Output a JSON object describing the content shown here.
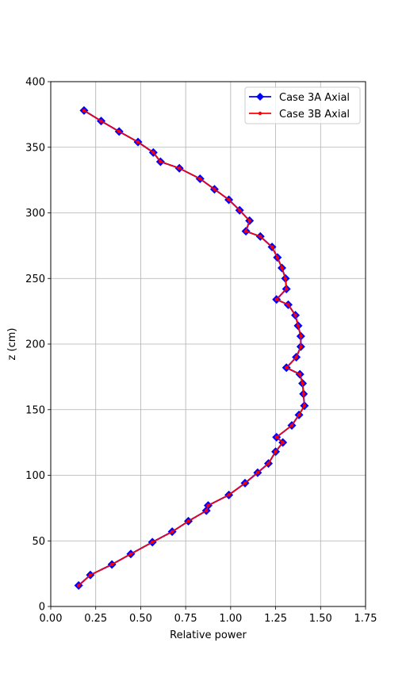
{
  "chart_data": {
    "type": "line",
    "title": "",
    "xlabel": "Relative power",
    "ylabel": "z (cm)",
    "xlim": [
      0,
      1.75
    ],
    "ylim": [
      0,
      400
    ],
    "xticks": [
      "0.00",
      "0.25",
      "0.50",
      "0.75",
      "1.00",
      "1.25",
      "1.50",
      "1.75"
    ],
    "yticks": [
      "0",
      "50",
      "100",
      "150",
      "200",
      "250",
      "300",
      "350",
      "400"
    ],
    "grid": true,
    "legend_position": "top-right",
    "series": [
      {
        "name": "Case 3A Axial",
        "color": "#0000ff",
        "marker": "diamond",
        "points": [
          [
            0.155,
            16
          ],
          [
            0.22,
            24
          ],
          [
            0.34,
            32
          ],
          [
            0.445,
            40
          ],
          [
            0.565,
            49
          ],
          [
            0.675,
            57
          ],
          [
            0.765,
            65
          ],
          [
            0.865,
            73
          ],
          [
            0.875,
            77
          ],
          [
            0.99,
            85
          ],
          [
            1.08,
            94
          ],
          [
            1.15,
            102
          ],
          [
            1.21,
            109
          ],
          [
            1.25,
            118
          ],
          [
            1.29,
            125
          ],
          [
            1.255,
            129
          ],
          [
            1.34,
            138
          ],
          [
            1.38,
            146
          ],
          [
            1.41,
            153
          ],
          [
            1.405,
            162
          ],
          [
            1.4,
            170
          ],
          [
            1.385,
            177
          ],
          [
            1.31,
            182
          ],
          [
            1.365,
            190
          ],
          [
            1.39,
            198
          ],
          [
            1.39,
            206
          ],
          [
            1.375,
            214
          ],
          [
            1.36,
            222
          ],
          [
            1.32,
            230
          ],
          [
            1.255,
            234
          ],
          [
            1.31,
            242
          ],
          [
            1.305,
            250
          ],
          [
            1.285,
            258
          ],
          [
            1.26,
            266
          ],
          [
            1.23,
            274
          ],
          [
            1.165,
            282
          ],
          [
            1.085,
            286
          ],
          [
            1.105,
            294
          ],
          [
            1.05,
            302
          ],
          [
            0.99,
            310
          ],
          [
            0.91,
            318
          ],
          [
            0.83,
            326
          ],
          [
            0.715,
            334
          ],
          [
            0.61,
            339
          ],
          [
            0.57,
            346
          ],
          [
            0.485,
            354
          ],
          [
            0.38,
            362
          ],
          [
            0.28,
            370
          ],
          [
            0.185,
            378
          ]
        ]
      },
      {
        "name": "Case 3B Axial",
        "color": "#ff0000",
        "marker": "dot",
        "points": [
          [
            0.155,
            16
          ],
          [
            0.22,
            24
          ],
          [
            0.34,
            32
          ],
          [
            0.445,
            40
          ],
          [
            0.565,
            49
          ],
          [
            0.675,
            57
          ],
          [
            0.765,
            65
          ],
          [
            0.865,
            73
          ],
          [
            0.875,
            77
          ],
          [
            0.99,
            85
          ],
          [
            1.08,
            94
          ],
          [
            1.15,
            102
          ],
          [
            1.21,
            109
          ],
          [
            1.25,
            118
          ],
          [
            1.29,
            125
          ],
          [
            1.255,
            129
          ],
          [
            1.34,
            138
          ],
          [
            1.38,
            146
          ],
          [
            1.41,
            153
          ],
          [
            1.405,
            162
          ],
          [
            1.4,
            170
          ],
          [
            1.385,
            177
          ],
          [
            1.31,
            182
          ],
          [
            1.365,
            190
          ],
          [
            1.39,
            198
          ],
          [
            1.39,
            206
          ],
          [
            1.375,
            214
          ],
          [
            1.36,
            222
          ],
          [
            1.32,
            230
          ],
          [
            1.255,
            234
          ],
          [
            1.31,
            242
          ],
          [
            1.305,
            250
          ],
          [
            1.285,
            258
          ],
          [
            1.26,
            266
          ],
          [
            1.23,
            274
          ],
          [
            1.165,
            282
          ],
          [
            1.085,
            286
          ],
          [
            1.105,
            294
          ],
          [
            1.05,
            302
          ],
          [
            0.99,
            310
          ],
          [
            0.91,
            318
          ],
          [
            0.83,
            326
          ],
          [
            0.715,
            334
          ],
          [
            0.61,
            339
          ],
          [
            0.57,
            346
          ],
          [
            0.485,
            354
          ],
          [
            0.38,
            362
          ],
          [
            0.28,
            370
          ],
          [
            0.185,
            378
          ]
        ]
      }
    ]
  }
}
